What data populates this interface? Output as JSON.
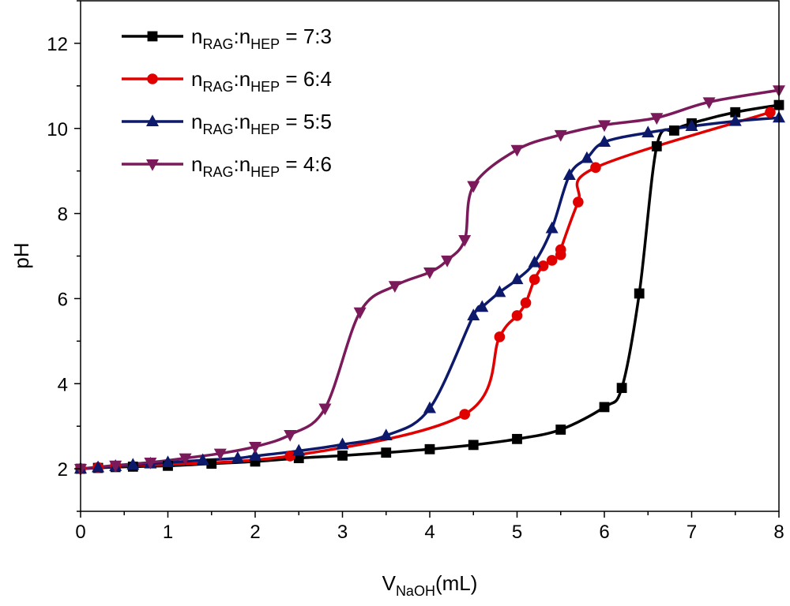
{
  "chart_data": {
    "type": "line",
    "xlabel": {
      "main": "V",
      "sub": "NaOH",
      "unit": "(mL)"
    },
    "ylabel": "pH",
    "xlim": [
      0,
      8
    ],
    "ylim": [
      1,
      13
    ],
    "xticks": [
      "0",
      "1",
      "2",
      "3",
      "4",
      "5",
      "6",
      "7",
      "8"
    ],
    "yticks": [
      "2",
      "4",
      "6",
      "8",
      "10",
      "12"
    ],
    "grid": false,
    "legend_placement": "top-left",
    "series": [
      {
        "name": "nRAG:nHEP = 7:3",
        "label": {
          "a": "n",
          "asub": "RAG",
          "b": "n",
          "bsub": "HEP",
          "ratio": " = 7:3"
        },
        "color": "#000000",
        "marker": "square",
        "x": [
          0,
          0.2,
          0.4,
          0.6,
          1.0,
          1.5,
          2.0,
          2.5,
          3.0,
          3.5,
          4.0,
          4.5,
          5.0,
          5.5,
          6.0,
          6.2,
          6.4,
          6.6,
          6.8,
          7.0,
          7.5,
          8.0
        ],
        "y": [
          2.0,
          2.02,
          2.04,
          2.05,
          2.07,
          2.12,
          2.17,
          2.25,
          2.31,
          2.38,
          2.46,
          2.56,
          2.7,
          2.92,
          3.45,
          3.9,
          6.12,
          9.58,
          9.95,
          10.12,
          10.38,
          10.55
        ]
      },
      {
        "name": "nRAG:nHEP = 6:4",
        "label": {
          "a": "n",
          "asub": "RAG",
          "b": "n",
          "bsub": "HEP",
          "ratio": " = 6:4"
        },
        "color": "#e00000",
        "marker": "circle",
        "x": [
          0,
          0.2,
          0.4,
          2.4,
          4.4,
          4.8,
          5.0,
          5.1,
          5.2,
          5.3,
          5.4,
          5.5,
          5.5,
          5.7,
          5.9,
          7.9
        ],
        "y": [
          2.0,
          2.03,
          2.06,
          2.3,
          3.28,
          5.1,
          5.6,
          5.9,
          6.45,
          6.77,
          6.9,
          7.03,
          7.15,
          8.27,
          9.08,
          10.38
        ]
      },
      {
        "name": "nRAG:nHEP = 5:5",
        "label": {
          "a": "n",
          "asub": "RAG",
          "b": "n",
          "bsub": "HEP",
          "ratio": " = 5:5"
        },
        "color": "#0d1a6b",
        "marker": "triangle-up",
        "x": [
          0,
          0.2,
          0.4,
          0.6,
          0.8,
          1.0,
          1.4,
          1.8,
          2.0,
          2.5,
          3.0,
          3.5,
          4.0,
          4.5,
          4.6,
          4.8,
          5.0,
          5.2,
          5.4,
          5.6,
          5.8,
          6.0,
          6.5,
          7.0,
          7.5,
          8.0
        ],
        "y": [
          2.0,
          2.03,
          2.06,
          2.09,
          2.12,
          2.15,
          2.2,
          2.25,
          2.3,
          2.42,
          2.57,
          2.78,
          3.42,
          5.6,
          5.8,
          6.15,
          6.45,
          6.85,
          7.65,
          8.9,
          9.3,
          9.68,
          9.9,
          10.05,
          10.17,
          10.25
        ]
      },
      {
        "name": "nRAG:nHEP = 4:6",
        "label": {
          "a": "n",
          "asub": "RAG",
          "b": "n",
          "bsub": "HEP",
          "ratio": " = 4:6"
        },
        "color": "#7a1a5a",
        "marker": "triangle-down",
        "x": [
          0,
          0.4,
          0.8,
          1.2,
          1.6,
          2.0,
          2.4,
          2.8,
          3.2,
          3.6,
          4.0,
          4.2,
          4.4,
          4.5,
          5.0,
          5.5,
          6.0,
          6.6,
          7.2,
          8.0
        ],
        "y": [
          2.0,
          2.08,
          2.15,
          2.25,
          2.36,
          2.52,
          2.8,
          3.42,
          5.68,
          6.3,
          6.62,
          6.9,
          7.38,
          8.65,
          9.5,
          9.85,
          10.08,
          10.25,
          10.62,
          10.9
        ]
      }
    ]
  }
}
